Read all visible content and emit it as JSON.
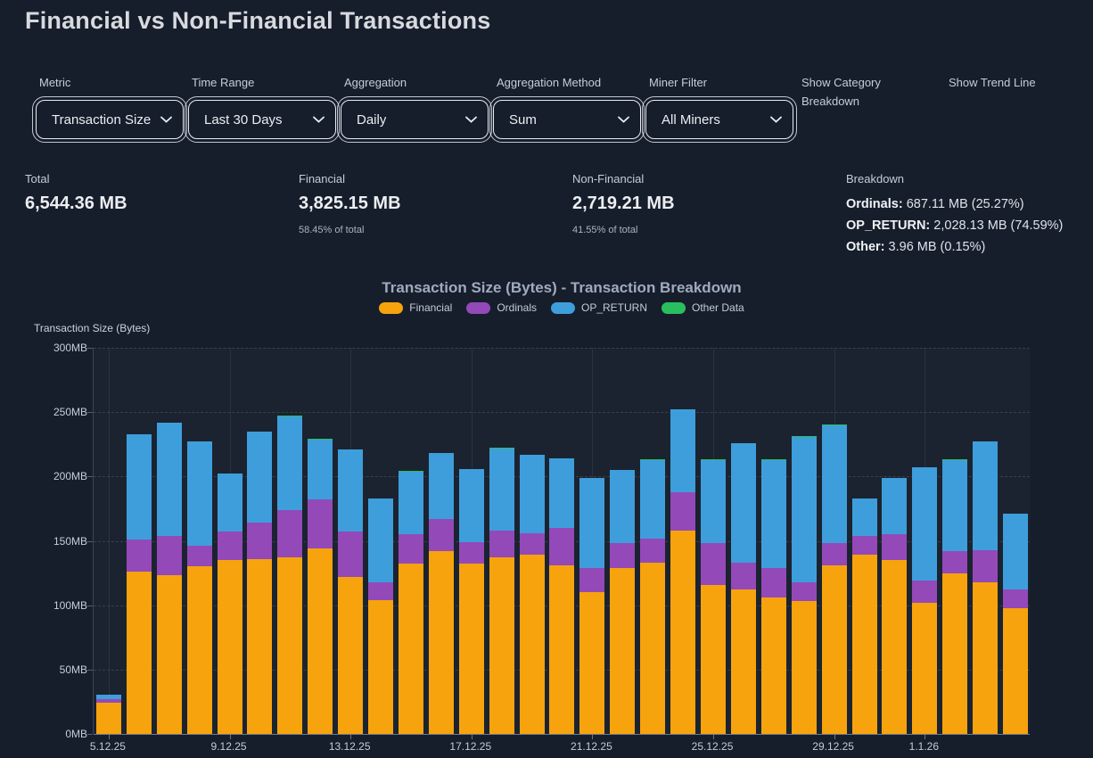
{
  "page_title": "Financial vs Non-Financial Transactions",
  "filters": [
    {
      "label": "Metric",
      "value": "Transaction Size"
    },
    {
      "label": "Time Range",
      "value": "Last 30 Days"
    },
    {
      "label": "Aggregation",
      "value": "Daily"
    },
    {
      "label": "Aggregation Method",
      "value": "Sum"
    },
    {
      "label": "Miner Filter",
      "value": "All Miners"
    },
    {
      "label": "Show Category Breakdown"
    },
    {
      "label": "Show Trend Line"
    }
  ],
  "stats": {
    "total": {
      "label": "Total",
      "value": "6,544.36 MB"
    },
    "financial": {
      "label": "Financial",
      "value": "3,825.15 MB",
      "note": "58.45% of total"
    },
    "non_financial": {
      "label": "Non-Financial",
      "value": "2,719.21 MB",
      "note": "41.55% of total"
    },
    "breakdown": {
      "label": "Breakdown",
      "items": [
        {
          "key": "Ordinals:",
          "value": "687.11 MB (25.27%)"
        },
        {
          "key": "OP_RETURN:",
          "value": "2,028.13 MB (74.59%)"
        },
        {
          "key": "Other:",
          "value": "3.96 MB (0.15%)"
        }
      ]
    }
  },
  "colors": {
    "background": "#161e2c",
    "financial": "#f7a30d",
    "ordinals": "#9449b8",
    "op_return": "#3e9edb",
    "other_data": "#2abf5e",
    "select_border": "#e8edf3"
  },
  "icons": {
    "select_chevron": "chevron-down-icon"
  },
  "chart_data": {
    "type": "bar",
    "stacked": true,
    "title": "Transaction Size (Bytes) - Transaction Breakdown",
    "ylabel": "Transaction Size (Bytes)",
    "xlabel": "",
    "ylim": [
      0,
      300
    ],
    "grid": true,
    "legend_position": "top",
    "y_tick_values": [
      0,
      50,
      100,
      150,
      200,
      250,
      300
    ],
    "y_tick_labels": [
      "0MB",
      "50MB",
      "100MB",
      "150MB",
      "200MB",
      "250MB",
      "300MB"
    ],
    "x_tick_indexes": [
      0,
      4,
      8,
      12,
      16,
      20,
      24,
      27
    ],
    "categories": [
      "5.12.25",
      "6.12.25",
      "7.12.25",
      "8.12.25",
      "9.12.25",
      "10.12.25",
      "11.12.25",
      "12.12.25",
      "13.12.25",
      "14.12.25",
      "15.12.25",
      "16.12.25",
      "17.12.25",
      "18.12.25",
      "19.12.25",
      "20.12.25",
      "21.12.25",
      "22.12.25",
      "23.12.25",
      "24.12.25",
      "25.12.25",
      "26.12.25",
      "27.12.25",
      "28.12.25",
      "29.12.25",
      "30.12.25",
      "31.12.25",
      "1.1.26",
      "2.1.26",
      "3.1.26",
      "4.1.26"
    ],
    "series": [
      {
        "name": "Financial",
        "color": "#f7a30d",
        "values": [
          24,
          126,
          123,
          130,
          135,
          136,
          137,
          144,
          122,
          104,
          132,
          142,
          132,
          137,
          139,
          131,
          110,
          129,
          133,
          158,
          116,
          112,
          106,
          103,
          131,
          139,
          135,
          102,
          125,
          118,
          98
        ]
      },
      {
        "name": "Ordinals",
        "color": "#9449b8",
        "values": [
          3,
          25,
          31,
          16,
          22,
          28,
          37,
          38,
          35,
          14,
          23,
          25,
          17,
          21,
          17,
          29,
          19,
          19,
          19,
          30,
          32,
          21,
          23,
          15,
          17,
          15,
          20,
          17,
          17,
          25,
          14
        ]
      },
      {
        "name": "OP_RETURN",
        "color": "#3e9edb",
        "values": [
          3.5,
          82,
          88,
          81,
          45,
          71,
          73,
          47,
          64,
          65,
          49,
          51,
          57,
          64,
          61,
          54,
          70,
          57,
          61,
          64,
          65,
          93,
          84,
          113,
          92,
          29,
          44,
          88,
          71,
          84,
          59
        ]
      },
      {
        "name": "Other Data",
        "color": "#2abf5e",
        "values": [
          0.1,
          0.1,
          0.1,
          0.1,
          0.1,
          0.1,
          0.1,
          0.1,
          0.1,
          0.1,
          0.1,
          0.1,
          0.1,
          0.1,
          0.1,
          0.1,
          0.1,
          0.1,
          0.1,
          0.1,
          0.1,
          0.1,
          0.1,
          0.1,
          0.1,
          0.1,
          0.1,
          0.1,
          0.1,
          0.1,
          0.1
        ]
      }
    ]
  }
}
